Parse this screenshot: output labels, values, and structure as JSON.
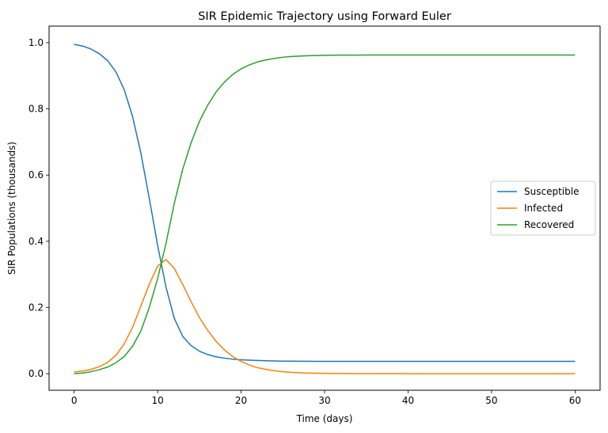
{
  "chart_data": {
    "type": "line",
    "title": "SIR Epidemic Trajectory using Forward Euler",
    "xlabel": "Time (days)",
    "ylabel": "SIR Populations (thousands)",
    "xlim": [
      -3,
      63
    ],
    "ylim": [
      -0.05,
      1.05
    ],
    "xticks": [
      0,
      10,
      20,
      30,
      40,
      50,
      60
    ],
    "xtick_labels": [
      "0",
      "10",
      "20",
      "30",
      "40",
      "50",
      "60"
    ],
    "yticks": [
      0.0,
      0.2,
      0.4,
      0.6,
      0.8,
      1.0
    ],
    "ytick_labels": [
      "0.0",
      "0.2",
      "0.4",
      "0.6",
      "0.8",
      "1.0"
    ],
    "grid": false,
    "legend_position": "center-right",
    "x": [
      0,
      1,
      2,
      3,
      4,
      5,
      6,
      7,
      8,
      9,
      10,
      11,
      12,
      13,
      14,
      15,
      16,
      17,
      18,
      19,
      20,
      21,
      22,
      23,
      24,
      25,
      26,
      27,
      28,
      29,
      30,
      31,
      32,
      33,
      34,
      35,
      36,
      37,
      38,
      39,
      40,
      41,
      42,
      43,
      44,
      45,
      46,
      47,
      48,
      49,
      50,
      51,
      52,
      53,
      54,
      55,
      56,
      57,
      58,
      59,
      60
    ],
    "series": [
      {
        "name": "Susceptible",
        "color": "#1f77b4",
        "values": [
          0.995,
          0.99,
          0.981,
          0.967,
          0.946,
          0.912,
          0.858,
          0.777,
          0.666,
          0.53,
          0.388,
          0.262,
          0.167,
          0.113,
          0.085,
          0.068,
          0.058,
          0.051,
          0.047,
          0.044,
          0.042,
          0.041,
          0.04,
          0.039,
          0.0385,
          0.038,
          0.0378,
          0.0376,
          0.0375,
          0.0374,
          0.0373,
          0.0373,
          0.0372,
          0.0372,
          0.0372,
          0.0372,
          0.0372,
          0.0372,
          0.0372,
          0.0372,
          0.0372,
          0.0372,
          0.0372,
          0.0372,
          0.0372,
          0.0372,
          0.0372,
          0.0372,
          0.0372,
          0.0372,
          0.0372,
          0.0372,
          0.0372,
          0.0372,
          0.0372,
          0.0372,
          0.0372,
          0.0372,
          0.0372,
          0.0372,
          0.0372
        ]
      },
      {
        "name": "Infected",
        "color": "#ff7f0e",
        "values": [
          0.005,
          0.008,
          0.013,
          0.021,
          0.034,
          0.055,
          0.09,
          0.14,
          0.205,
          0.27,
          0.325,
          0.345,
          0.318,
          0.27,
          0.218,
          0.17,
          0.131,
          0.098,
          0.072,
          0.052,
          0.037,
          0.026,
          0.018,
          0.013,
          0.009,
          0.006,
          0.004,
          0.003,
          0.002,
          0.0015,
          0.001,
          0.0007,
          0.0005,
          0.0004,
          0.0003,
          0.0002,
          0.0001,
          0.0001,
          0.0001,
          0.0001,
          0.0,
          0.0,
          0.0,
          0.0,
          0.0,
          0.0,
          0.0,
          0.0,
          0.0,
          0.0,
          0.0,
          0.0,
          0.0,
          0.0,
          0.0,
          0.0,
          0.0,
          0.0,
          0.0,
          0.0,
          0.0
        ]
      },
      {
        "name": "Recovered",
        "color": "#2ca02c",
        "values": [
          0.0,
          0.002,
          0.006,
          0.012,
          0.02,
          0.033,
          0.052,
          0.083,
          0.129,
          0.2,
          0.287,
          0.393,
          0.515,
          0.617,
          0.697,
          0.762,
          0.811,
          0.851,
          0.881,
          0.904,
          0.921,
          0.933,
          0.942,
          0.948,
          0.9525,
          0.956,
          0.9582,
          0.9594,
          0.9605,
          0.9611,
          0.9617,
          0.962,
          0.9623,
          0.9624,
          0.9625,
          0.9626,
          0.9627,
          0.9628,
          0.9628,
          0.9628,
          0.9628,
          0.9628,
          0.9628,
          0.9628,
          0.9628,
          0.9628,
          0.9628,
          0.9628,
          0.9628,
          0.9628,
          0.9628,
          0.9628,
          0.9628,
          0.9628,
          0.9628,
          0.9628,
          0.9628,
          0.9628,
          0.9628,
          0.9628,
          0.9628
        ]
      }
    ]
  }
}
